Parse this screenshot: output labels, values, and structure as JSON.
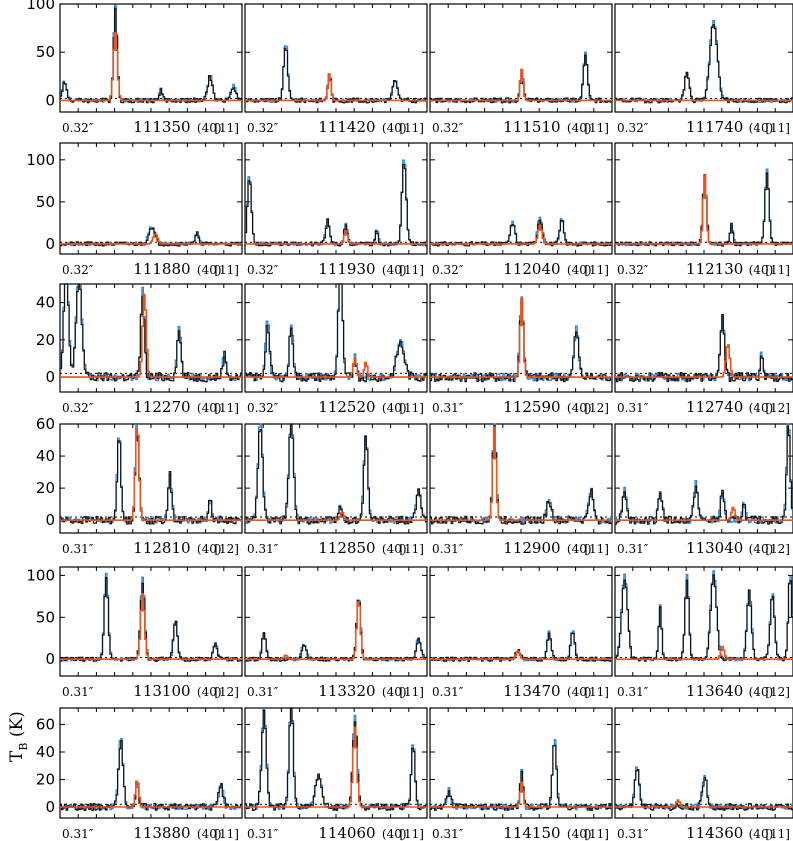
{
  "figure": {
    "ylabel": "T",
    "ylabel_sub": "B",
    "ylabel_unit": " (K)"
  },
  "colors": {
    "observed": "#111111",
    "model_a": "#2f86d6",
    "model_b": "#e8541e",
    "baseline": "#000000"
  },
  "chart_data": {
    "type": "line",
    "rows": [
      {
        "ylim": [
          -12,
          100
        ],
        "yticks": [
          0,
          50,
          100
        ],
        "panels": [
          {
            "freq": "111350",
            "res": "(40)",
            "ch": "[11]",
            "beam": "0.32″",
            "peaks": [
              [
                0.02,
                18,
                1.5
              ],
              [
                0.3,
                95,
                1.2
              ],
              [
                0.55,
                12,
                1
              ],
              [
                0.82,
                25,
                1.5
              ],
              [
                0.95,
                15,
                1.5
              ]
            ],
            "orange": [
              [
                0.3,
                70,
                1.3
              ]
            ],
            "bpos": [
              0.58
            ]
          },
          {
            "freq": "111420",
            "res": "(40)",
            "ch": "[11]",
            "beam": "0.32″",
            "peaks": [
              [
                0.22,
                58,
                1.3
              ],
              [
                0.46,
                28,
                1
              ],
              [
                0.82,
                20,
                1.5
              ]
            ],
            "orange": [
              [
                0.46,
                28,
                1
              ]
            ],
            "bpos": []
          },
          {
            "freq": "111510",
            "res": "(40)",
            "ch": "[11]",
            "beam": "0.32″",
            "peaks": [
              [
                0.5,
                30,
                1.1
              ],
              [
                0.85,
                48,
                1.3
              ]
            ],
            "orange": [
              [
                0.5,
                32,
                1
              ]
            ],
            "bpos": []
          },
          {
            "freq": "111740",
            "res": "(40)",
            "ch": "[11]",
            "beam": "0.32″",
            "peaks": [
              [
                0.4,
                28,
                1.5
              ],
              [
                0.55,
                80,
                2.5
              ]
            ],
            "orange": [],
            "bpos": [
              0.3
            ]
          }
        ]
      },
      {
        "ylim": [
          -12,
          120
        ],
        "yticks": [
          0,
          50,
          100
        ],
        "panels": [
          {
            "freq": "111880",
            "res": "(40)",
            "ch": "[11]",
            "beam": "0.32″",
            "peaks": [
              [
                0.5,
                20,
                2
              ],
              [
                0.75,
                12,
                1.2
              ]
            ],
            "orange": [
              [
                0.52,
                12,
                1.5
              ]
            ],
            "bpos": []
          },
          {
            "freq": "111930",
            "res": "(40)",
            "ch": "[11]",
            "beam": "0.32″",
            "peaks": [
              [
                0.02,
                80,
                1.3
              ],
              [
                0.45,
                28,
                1.3
              ],
              [
                0.55,
                25,
                1
              ],
              [
                0.72,
                15,
                1
              ],
              [
                0.87,
                98,
                1.4
              ]
            ],
            "orange": [
              [
                0.55,
                15,
                1.2
              ]
            ],
            "bpos": []
          },
          {
            "freq": "112040",
            "res": "(40)",
            "ch": "[11]",
            "beam": "0.32″",
            "peaks": [
              [
                0.45,
                25,
                1.5
              ],
              [
                0.6,
                30,
                1.5
              ],
              [
                0.72,
                28,
                1.3
              ]
            ],
            "orange": [
              [
                0.6,
                22,
                1.3
              ]
            ],
            "bpos": []
          },
          {
            "freq": "112130",
            "res": "(40)",
            "ch": "[11]",
            "beam": "0.32″",
            "peaks": [
              [
                0.5,
                80,
                1.2
              ],
              [
                0.65,
                22,
                1
              ],
              [
                0.85,
                85,
                1.3
              ]
            ],
            "orange": [
              [
                0.5,
                82,
                1.1
              ]
            ],
            "bpos": []
          }
        ]
      },
      {
        "ylim": [
          -8,
          50
        ],
        "yticks": [
          0,
          20,
          40
        ],
        "panels": [
          {
            "freq": "112270",
            "res": "(40)",
            "ch": "[11]",
            "beam": "0.32″",
            "peaks": [
              [
                0.03,
                60,
                1.5
              ],
              [
                0.1,
                55,
                1.8
              ],
              [
                0.45,
                45,
                1.2
              ],
              [
                0.65,
                25,
                1.3
              ],
              [
                0.9,
                12,
                1.2
              ]
            ],
            "orange": [
              [
                0.46,
                45,
                1.2
              ]
            ],
            "bpos": [
              0.32
            ]
          },
          {
            "freq": "112520",
            "res": "(40)",
            "ch": "[11]",
            "beam": "0.32″",
            "peaks": [
              [
                0.12,
                28,
                1.3
              ],
              [
                0.25,
                28,
                1.2
              ],
              [
                0.52,
                60,
                1.3
              ],
              [
                0.6,
                12,
                1
              ],
              [
                0.85,
                18,
                2.5
              ]
            ],
            "orange": [
              [
                0.6,
                10,
                1.2
              ],
              [
                0.66,
                8,
                1
              ]
            ],
            "bpos": []
          },
          {
            "freq": "112590",
            "res": "(40)",
            "ch": "[12]",
            "beam": "0.31″",
            "peaks": [
              [
                0.5,
                42,
                1.2
              ],
              [
                0.8,
                25,
                1.5
              ]
            ],
            "orange": [
              [
                0.5,
                42,
                1.1
              ]
            ],
            "bpos": []
          },
          {
            "freq": "112740",
            "res": "(40)",
            "ch": "[12]",
            "beam": "0.31″",
            "peaks": [
              [
                0.6,
                32,
                1.3
              ],
              [
                0.82,
                12,
                1
              ]
            ],
            "orange": [
              [
                0.63,
                18,
                1.3
              ]
            ],
            "bpos": []
          }
        ]
      },
      {
        "ylim": [
          -8,
          60
        ],
        "yticks": [
          0,
          20,
          40,
          60
        ],
        "panels": [
          {
            "freq": "112810",
            "res": "(40)",
            "ch": "[12]",
            "beam": "0.31″",
            "peaks": [
              [
                0.32,
                52,
                1.2
              ],
              [
                0.42,
                58,
                1.2
              ],
              [
                0.6,
                28,
                1.2
              ],
              [
                0.82,
                12,
                1.2
              ]
            ],
            "orange": [
              [
                0.42,
                60,
                1.2
              ]
            ],
            "bpos": []
          },
          {
            "freq": "112850",
            "res": "(40)",
            "ch": "[11]",
            "beam": "0.31″",
            "peaks": [
              [
                0.08,
                60,
                1.5
              ],
              [
                0.25,
                65,
                1.5
              ],
              [
                0.52,
                8,
                1.2
              ],
              [
                0.66,
                52,
                1.3
              ],
              [
                0.95,
                18,
                1.5
              ]
            ],
            "orange": [
              [
                0.53,
                5,
                1.2
              ]
            ],
            "bpos": []
          },
          {
            "freq": "112900",
            "res": "(40)",
            "ch": "[11]",
            "beam": "0.31″",
            "peaks": [
              [
                0.35,
                58,
                1.2
              ],
              [
                0.65,
                12,
                1.5
              ],
              [
                0.88,
                18,
                1.5
              ]
            ],
            "orange": [
              [
                0.35,
                58,
                1.1
              ]
            ],
            "bpos": []
          },
          {
            "freq": "113040",
            "res": "(40)",
            "ch": "[12]",
            "beam": "0.31″",
            "peaks": [
              [
                0.05,
                18,
                1.5
              ],
              [
                0.25,
                18,
                1.3
              ],
              [
                0.45,
                22,
                1.3
              ],
              [
                0.6,
                18,
                1.2
              ],
              [
                0.72,
                10,
                1
              ],
              [
                0.97,
                60,
                1.2
              ]
            ],
            "orange": [
              [
                0.66,
                8,
                1.2
              ]
            ],
            "bpos": []
          }
        ]
      },
      {
        "ylim": [
          -20,
          110
        ],
        "yticks": [
          0,
          50,
          100
        ],
        "panels": [
          {
            "freq": "113100",
            "res": "(40)",
            "ch": "[12]",
            "beam": "0.31″",
            "peaks": [
              [
                0.25,
                98,
                1.3
              ],
              [
                0.45,
                92,
                1.4
              ],
              [
                0.63,
                45,
                1.3
              ],
              [
                0.85,
                20,
                1.3
              ]
            ],
            "orange": [
              [
                0.45,
                78,
                1.3
              ]
            ],
            "bpos": []
          },
          {
            "freq": "113320",
            "res": "(40)",
            "ch": "[11]",
            "beam": "0.31″",
            "peaks": [
              [
                0.1,
                30,
                1.3
              ],
              [
                0.32,
                18,
                1.5
              ],
              [
                0.62,
                72,
                1.3
              ],
              [
                0.95,
                25,
                1.5
              ]
            ],
            "orange": [
              [
                0.62,
                72,
                1.2
              ],
              [
                0.22,
                5,
                1
              ]
            ],
            "bpos": []
          },
          {
            "freq": "113470",
            "res": "(40)",
            "ch": "[11]",
            "beam": "0.31″",
            "peaks": [
              [
                0.48,
                10,
                1.5
              ],
              [
                0.65,
                30,
                1.3
              ],
              [
                0.78,
                35,
                1.2
              ]
            ],
            "orange": [
              [
                0.48,
                10,
                1.2
              ]
            ],
            "bpos": []
          },
          {
            "freq": "113640",
            "res": "(40)",
            "ch": "[12]",
            "beam": "0.31″",
            "peaks": [
              [
                0.05,
                95,
                2
              ],
              [
                0.25,
                60,
                1
              ],
              [
                0.4,
                95,
                1.3
              ],
              [
                0.55,
                100,
                2
              ],
              [
                0.75,
                80,
                1.5
              ],
              [
                0.88,
                75,
                1.5
              ],
              [
                0.98,
                100,
                1.2
              ]
            ],
            "orange": [
              [
                0.6,
                15,
                1.2
              ]
            ],
            "bpos": []
          }
        ]
      },
      {
        "ylim": [
          -8,
          72
        ],
        "yticks": [
          0,
          20,
          40,
          60
        ],
        "panels": [
          {
            "freq": "113880",
            "res": "(40)",
            "ch": "[11]",
            "beam": "0.31″",
            "peaks": [
              [
                0.33,
                48,
                1.5
              ],
              [
                0.42,
                18,
                1
              ],
              [
                0.88,
                15,
                1.5
              ]
            ],
            "orange": [
              [
                0.42,
                20,
                1.1
              ]
            ],
            "bpos": []
          },
          {
            "freq": "114060",
            "res": "(40)",
            "ch": "[11]",
            "beam": "0.31″",
            "peaks": [
              [
                0.1,
                70,
                1.5
              ],
              [
                0.25,
                80,
                1.3
              ],
              [
                0.4,
                22,
                2
              ],
              [
                0.6,
                62,
                1.5
              ],
              [
                0.92,
                45,
                1.2
              ]
            ],
            "orange": [
              [
                0.6,
                58,
                1.3
              ]
            ],
            "bpos": []
          },
          {
            "freq": "114150",
            "res": "(40)",
            "ch": "[11]",
            "beam": "0.31″",
            "peaks": [
              [
                0.1,
                12,
                1.3
              ],
              [
                0.5,
                25,
                1
              ],
              [
                0.68,
                48,
                1.3
              ]
            ],
            "orange": [
              [
                0.5,
                18,
                1
              ]
            ],
            "bpos": []
          },
          {
            "freq": "114360",
            "res": "(40)",
            "ch": "[11]",
            "beam": "0.31″",
            "peaks": [
              [
                0.12,
                28,
                1.5
              ],
              [
                0.5,
                22,
                1.5
              ]
            ],
            "orange": [
              [
                0.35,
                5,
                1.2
              ]
            ],
            "bpos": []
          }
        ]
      }
    ]
  }
}
